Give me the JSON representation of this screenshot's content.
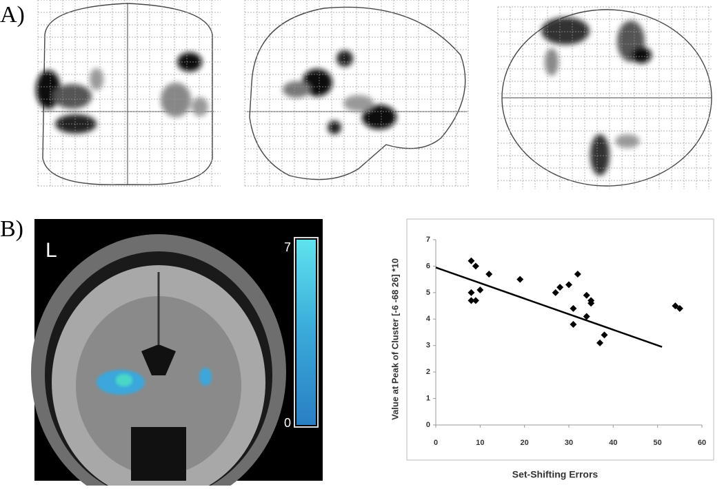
{
  "panels": {
    "a": {
      "label": "A)"
    },
    "b": {
      "label": "B)"
    }
  },
  "slice": {
    "side_label": "L",
    "colorbar": {
      "lim": [
        0,
        7
      ],
      "ticks": [
        0,
        7
      ]
    }
  },
  "chart_data": {
    "type": "scatter",
    "xlabel": "Set-Shifting Errors",
    "ylabel": "Value at Peak of Cluster [-6 -68 26] *10",
    "xlim": [
      0,
      60
    ],
    "ylim": [
      0,
      7
    ],
    "xticks": [
      0,
      10,
      20,
      30,
      40,
      50,
      60
    ],
    "yticks": [
      0,
      1,
      2,
      3,
      4,
      5,
      6,
      7
    ],
    "color": "#000000",
    "x": [
      8,
      9,
      8,
      8,
      9,
      10,
      12,
      19,
      27,
      28,
      30,
      32,
      31,
      31,
      34,
      35,
      35,
      34,
      37,
      38,
      54,
      55
    ],
    "values": [
      6.2,
      6.0,
      5.0,
      4.7,
      4.7,
      5.1,
      5.7,
      5.5,
      5.0,
      5.2,
      5.3,
      5.7,
      4.4,
      3.8,
      4.9,
      4.6,
      4.7,
      4.1,
      3.1,
      3.4,
      4.5,
      4.4
    ],
    "trend_line": {
      "x": [
        0,
        51
      ],
      "values": [
        5.95,
        2.95
      ]
    }
  }
}
